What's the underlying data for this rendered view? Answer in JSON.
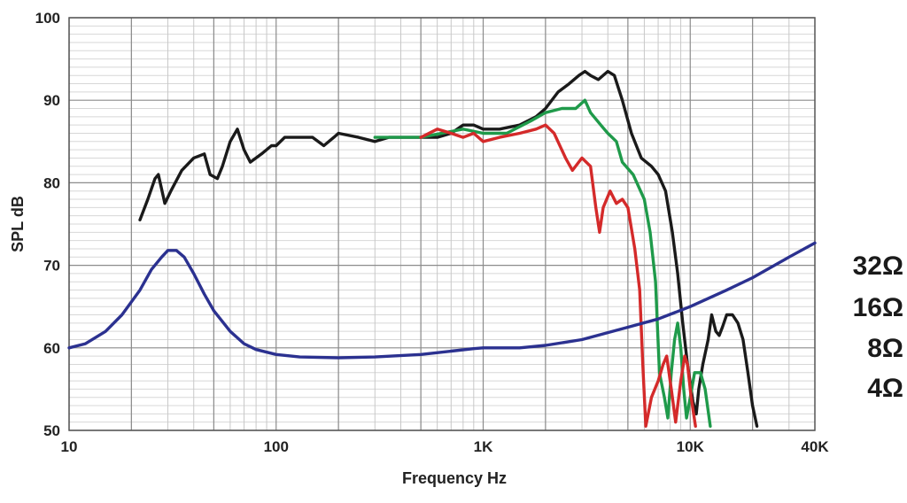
{
  "chart_data": {
    "type": "line",
    "title": "",
    "xlabel": "Frequency Hz",
    "ylabel": "SPL dB",
    "x_scale": "log",
    "xlim": [
      10,
      40000
    ],
    "ylim": [
      50,
      100
    ],
    "grid": true,
    "x_tick_values": [
      10,
      100,
      1000,
      10000,
      40000
    ],
    "x_tick_labels": [
      "10",
      "100",
      "1K",
      "10K",
      "40K"
    ],
    "y_tick_values": [
      50,
      60,
      70,
      80,
      90,
      100
    ],
    "y_tick_labels": [
      "50",
      "60",
      "70",
      "80",
      "90",
      "100"
    ],
    "legend_labels": [
      "32Ω",
      "16Ω",
      "8Ω",
      "4Ω"
    ],
    "series": [
      {
        "color": "#1a1a1a",
        "points": [
          [
            22,
            75.5
          ],
          [
            24,
            78
          ],
          [
            26,
            80.5
          ],
          [
            27,
            81
          ],
          [
            29,
            77.5
          ],
          [
            31,
            79
          ],
          [
            35,
            81.5
          ],
          [
            40,
            83
          ],
          [
            45,
            83.5
          ],
          [
            48,
            81
          ],
          [
            52,
            80.5
          ],
          [
            55,
            82
          ],
          [
            60,
            85
          ],
          [
            65,
            86.5
          ],
          [
            70,
            84
          ],
          [
            75,
            82.5
          ],
          [
            85,
            83.5
          ],
          [
            95,
            84.5
          ],
          [
            100,
            84.5
          ],
          [
            110,
            85.5
          ],
          [
            120,
            85.5
          ],
          [
            150,
            85.5
          ],
          [
            170,
            84.5
          ],
          [
            190,
            85.5
          ],
          [
            200,
            86
          ],
          [
            250,
            85.5
          ],
          [
            300,
            85
          ],
          [
            350,
            85.5
          ],
          [
            400,
            85.5
          ],
          [
            500,
            85.5
          ],
          [
            600,
            85.5
          ],
          [
            700,
            86
          ],
          [
            800,
            87
          ],
          [
            900,
            87
          ],
          [
            1000,
            86.5
          ],
          [
            1200,
            86.5
          ],
          [
            1500,
            87
          ],
          [
            1800,
            88
          ],
          [
            2000,
            89
          ],
          [
            2300,
            91
          ],
          [
            2600,
            92
          ],
          [
            2900,
            93
          ],
          [
            3100,
            93.5
          ],
          [
            3300,
            93
          ],
          [
            3600,
            92.5
          ],
          [
            4000,
            93.5
          ],
          [
            4300,
            93
          ],
          [
            4700,
            90
          ],
          [
            5200,
            86
          ],
          [
            5800,
            83
          ],
          [
            6500,
            82
          ],
          [
            7000,
            81
          ],
          [
            7600,
            79
          ],
          [
            8200,
            74
          ],
          [
            8700,
            69
          ],
          [
            9200,
            63
          ],
          [
            9700,
            58
          ],
          [
            10300,
            53.5
          ],
          [
            10700,
            52
          ],
          [
            11000,
            55
          ],
          [
            11500,
            58
          ],
          [
            12200,
            61
          ],
          [
            12700,
            64
          ],
          [
            13300,
            62
          ],
          [
            13800,
            61.5
          ],
          [
            14300,
            62.5
          ],
          [
            15000,
            64
          ],
          [
            16000,
            64
          ],
          [
            17000,
            63
          ],
          [
            18000,
            61
          ],
          [
            19000,
            57
          ],
          [
            20000,
            53
          ],
          [
            21000,
            50.5
          ]
        ]
      },
      {
        "color": "#1f9a4a",
        "points": [
          [
            300,
            85.5
          ],
          [
            500,
            85.5
          ],
          [
            800,
            86.5
          ],
          [
            1000,
            86
          ],
          [
            1300,
            86
          ],
          [
            1700,
            87.5
          ],
          [
            2000,
            88.5
          ],
          [
            2400,
            89
          ],
          [
            2800,
            89
          ],
          [
            3100,
            90
          ],
          [
            3300,
            88.5
          ],
          [
            3700,
            87
          ],
          [
            4000,
            86
          ],
          [
            4400,
            85
          ],
          [
            4700,
            82.5
          ],
          [
            5300,
            81
          ],
          [
            6000,
            78
          ],
          [
            6400,
            74
          ],
          [
            6800,
            68
          ],
          [
            7100,
            57
          ],
          [
            7500,
            54
          ],
          [
            7800,
            51.5
          ],
          [
            8100,
            57
          ],
          [
            8400,
            61
          ],
          [
            8700,
            63
          ],
          [
            9000,
            60
          ],
          [
            9300,
            55
          ],
          [
            9600,
            51.5
          ],
          [
            10000,
            54
          ],
          [
            10500,
            57
          ],
          [
            11200,
            57
          ],
          [
            11800,
            55
          ],
          [
            12500,
            50.5
          ]
        ]
      },
      {
        "color": "#d42a2a",
        "points": [
          [
            500,
            85.5
          ],
          [
            600,
            86.5
          ],
          [
            700,
            86
          ],
          [
            800,
            85.5
          ],
          [
            900,
            86
          ],
          [
            1000,
            85
          ],
          [
            1200,
            85.5
          ],
          [
            1500,
            86
          ],
          [
            1800,
            86.5
          ],
          [
            2000,
            87
          ],
          [
            2200,
            86
          ],
          [
            2500,
            83
          ],
          [
            2700,
            81.5
          ],
          [
            3000,
            83
          ],
          [
            3300,
            82
          ],
          [
            3500,
            77
          ],
          [
            3650,
            74
          ],
          [
            3800,
            77
          ],
          [
            4100,
            79
          ],
          [
            4400,
            77.5
          ],
          [
            4700,
            78
          ],
          [
            5000,
            77
          ],
          [
            5400,
            72
          ],
          [
            5700,
            67
          ],
          [
            5900,
            58
          ],
          [
            6100,
            50.5
          ],
          [
            6500,
            54
          ],
          [
            7000,
            56
          ],
          [
            7400,
            58
          ],
          [
            7700,
            59
          ],
          [
            8100,
            55
          ],
          [
            8500,
            51
          ],
          [
            9000,
            56
          ],
          [
            9400,
            59
          ],
          [
            9700,
            58
          ],
          [
            10100,
            54
          ],
          [
            10600,
            50.5
          ]
        ]
      },
      {
        "color": "#2b3190",
        "points": [
          [
            10,
            60
          ],
          [
            12,
            60.5
          ],
          [
            15,
            62
          ],
          [
            18,
            64
          ],
          [
            22,
            67
          ],
          [
            25,
            69.5
          ],
          [
            28,
            71
          ],
          [
            30,
            71.8
          ],
          [
            33,
            71.8
          ],
          [
            36,
            71
          ],
          [
            40,
            69
          ],
          [
            45,
            66.5
          ],
          [
            50,
            64.5
          ],
          [
            60,
            62
          ],
          [
            70,
            60.5
          ],
          [
            80,
            59.8
          ],
          [
            100,
            59.2
          ],
          [
            130,
            58.9
          ],
          [
            200,
            58.8
          ],
          [
            300,
            58.9
          ],
          [
            500,
            59.2
          ],
          [
            700,
            59.6
          ],
          [
            900,
            59.9
          ],
          [
            1000,
            60
          ],
          [
            1500,
            60
          ],
          [
            2000,
            60.3
          ],
          [
            3000,
            61
          ],
          [
            5000,
            62.5
          ],
          [
            7000,
            63.5
          ],
          [
            10000,
            65
          ],
          [
            15000,
            67
          ],
          [
            20000,
            68.5
          ],
          [
            30000,
            71
          ],
          [
            40000,
            72.7
          ]
        ]
      }
    ]
  }
}
